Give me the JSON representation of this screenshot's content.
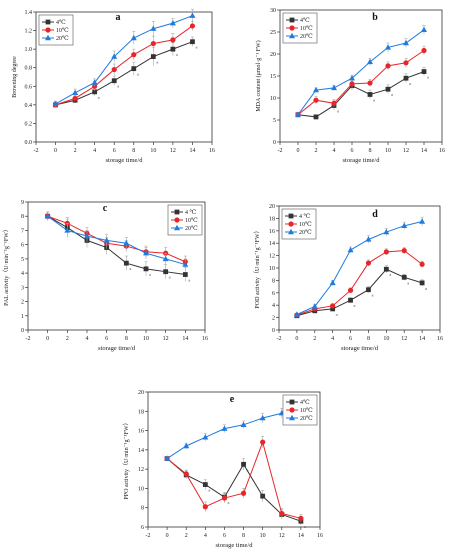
{
  "figure": {
    "background": "#ffffff"
  },
  "styles": {
    "series_colors": [
      "#333333",
      "#e8262a",
      "#1f7be0"
    ],
    "series_markers": [
      "square",
      "circle",
      "triangle"
    ],
    "error_bar_color": "#a8a8a8"
  },
  "chart_data": [
    {
      "panel": "a",
      "type": "line",
      "title": "a",
      "xlabel": "storage time/d",
      "ylabel": "Browning  degree",
      "xlim": [
        -2,
        16
      ],
      "ylim": [
        0.0,
        1.4
      ],
      "xticks": [
        -2,
        0,
        2,
        4,
        6,
        8,
        10,
        12,
        14,
        16
      ],
      "yticks": [
        0.0,
        0.2,
        0.4,
        0.6,
        0.8,
        1.0,
        1.2,
        1.4
      ],
      "legend_position": "top-left",
      "x": [
        0,
        2,
        4,
        6,
        8,
        10,
        12,
        14
      ],
      "series": [
        {
          "name": "4℃",
          "values": [
            0.4,
            0.45,
            0.54,
            0.66,
            0.79,
            0.92,
            1.0,
            1.08
          ],
          "errors": [
            0.03,
            0.03,
            0.04,
            0.05,
            0.07,
            0.1,
            0.07,
            0.05
          ],
          "annotations": [
            "",
            "",
            "a",
            "a",
            "a",
            "a",
            "a",
            "a"
          ]
        },
        {
          "name": "10℃",
          "values": [
            0.4,
            0.47,
            0.6,
            0.78,
            0.94,
            1.06,
            1.1,
            1.25
          ],
          "errors": [
            0.03,
            0.03,
            0.05,
            0.06,
            0.06,
            0.08,
            0.07,
            0.05
          ],
          "annotations": [
            "",
            "",
            "",
            "",
            "",
            "",
            "",
            ""
          ]
        },
        {
          "name": "20℃",
          "values": [
            0.41,
            0.53,
            0.64,
            0.92,
            1.12,
            1.22,
            1.28,
            1.36
          ],
          "errors": [
            0.03,
            0.04,
            0.04,
            0.06,
            0.07,
            0.08,
            0.05,
            0.07
          ],
          "annotations": [
            "",
            "",
            "",
            "",
            "",
            "",
            "",
            ""
          ]
        }
      ]
    },
    {
      "panel": "b",
      "type": "line",
      "title": "b",
      "xlabel": "storage time/d",
      "ylabel": "MDA content (μmol·g⁻¹ FW)",
      "xlim": [
        -2,
        16
      ],
      "ylim": [
        0,
        30
      ],
      "xticks": [
        -2,
        0,
        2,
        4,
        6,
        8,
        10,
        12,
        14,
        16
      ],
      "yticks": [
        0,
        5,
        10,
        15,
        20,
        25,
        30
      ],
      "legend_position": "top-left",
      "x": [
        0,
        2,
        4,
        6,
        8,
        10,
        12,
        14
      ],
      "series": [
        {
          "name": "4℃",
          "values": [
            6.2,
            5.7,
            8.3,
            12.8,
            10.8,
            12.0,
            14.5,
            16.0
          ],
          "errors": [
            0.3,
            0.5,
            1.0,
            1.0,
            1.0,
            1.0,
            1.0,
            1.0
          ],
          "annotations": [
            "",
            "",
            "a",
            "",
            "a",
            "a",
            "a",
            "a"
          ]
        },
        {
          "name": "10℃",
          "values": [
            6.2,
            9.5,
            8.8,
            13.2,
            13.4,
            17.3,
            18.0,
            20.8
          ],
          "errors": [
            0.3,
            0.8,
            0.8,
            0.8,
            0.8,
            0.9,
            1.0,
            1.0
          ],
          "annotations": [
            "",
            "",
            "",
            "",
            "",
            "",
            "",
            ""
          ]
        },
        {
          "name": "20℃",
          "values": [
            6.2,
            11.8,
            12.3,
            14.5,
            18.2,
            21.5,
            22.5,
            25.5
          ],
          "errors": [
            0.3,
            0.5,
            0.6,
            0.7,
            0.8,
            1.0,
            1.0,
            1.0
          ],
          "annotations": [
            "",
            "",
            "",
            "",
            "",
            "",
            "",
            ""
          ]
        }
      ]
    },
    {
      "panel": "c",
      "type": "line",
      "title": "c",
      "xlabel": "storage time/d",
      "ylabel": "PAL activity（U·min⁻¹g⁻¹FW）",
      "xlim": [
        -2,
        16
      ],
      "ylim": [
        0,
        9
      ],
      "xticks": [
        -2,
        0,
        2,
        4,
        6,
        8,
        10,
        12,
        14,
        16
      ],
      "yticks": [
        0,
        1,
        2,
        3,
        4,
        5,
        6,
        7,
        8,
        9
      ],
      "legend_position": "top-right",
      "x": [
        0,
        2,
        4,
        6,
        8,
        10,
        12,
        14
      ],
      "series": [
        {
          "name": "4 ℃",
          "values": [
            8.0,
            7.2,
            6.3,
            5.8,
            4.7,
            4.3,
            4.1,
            3.9
          ],
          "errors": [
            0.3,
            0.6,
            0.5,
            0.5,
            0.5,
            0.5,
            0.5,
            0.5
          ],
          "annotations": [
            "",
            "",
            "",
            "",
            "a",
            "a",
            "a",
            "a"
          ]
        },
        {
          "name": "10℃",
          "values": [
            8.0,
            7.5,
            6.8,
            6.1,
            5.9,
            5.5,
            5.4,
            4.8
          ],
          "errors": [
            0.3,
            0.4,
            0.4,
            0.4,
            0.4,
            0.4,
            0.4,
            0.4
          ],
          "annotations": [
            "",
            "",
            "",
            "",
            "",
            "",
            "",
            ""
          ]
        },
        {
          "name": "20℃",
          "values": [
            8.0,
            7.0,
            6.6,
            6.3,
            6.1,
            5.4,
            5.0,
            4.6
          ],
          "errors": [
            0.3,
            0.5,
            0.4,
            0.4,
            0.4,
            0.4,
            0.4,
            0.4
          ],
          "annotations": [
            "",
            "",
            "",
            "",
            "",
            "",
            "",
            ""
          ]
        }
      ]
    },
    {
      "panel": "d",
      "type": "line",
      "title": "d",
      "xlabel": "storage time/d",
      "ylabel": "POD activity（U·min⁻¹g⁻¹FW）",
      "xlim": [
        -2,
        16
      ],
      "ylim": [
        0,
        20
      ],
      "xticks": [
        -2,
        0,
        2,
        4,
        6,
        8,
        10,
        12,
        14,
        16
      ],
      "yticks": [
        0,
        2,
        4,
        6,
        8,
        10,
        12,
        14,
        16,
        18,
        20
      ],
      "legend_position": "top-left",
      "x": [
        0,
        2,
        4,
        6,
        8,
        10,
        12,
        14
      ],
      "series": [
        {
          "name": "4 ℃",
          "values": [
            2.3,
            3.1,
            3.4,
            4.8,
            6.5,
            9.8,
            8.5,
            7.6
          ],
          "errors": [
            0.2,
            0.2,
            0.3,
            0.4,
            0.5,
            0.6,
            0.5,
            0.5
          ],
          "annotations": [
            "",
            "",
            "a",
            "a",
            "a",
            "a",
            "a",
            "a"
          ]
        },
        {
          "name": "10℃",
          "values": [
            2.4,
            3.4,
            3.9,
            6.4,
            10.8,
            12.6,
            12.8,
            10.6
          ],
          "errors": [
            0.2,
            0.3,
            0.3,
            0.4,
            0.5,
            0.5,
            0.5,
            0.5
          ],
          "annotations": [
            "",
            "",
            "",
            "",
            "",
            "",
            "",
            ""
          ]
        },
        {
          "name": "20℃",
          "values": [
            2.5,
            3.8,
            7.6,
            12.9,
            14.6,
            15.8,
            16.8,
            17.5
          ],
          "errors": [
            0.2,
            0.3,
            0.4,
            0.5,
            0.6,
            0.6,
            0.6,
            0.7
          ],
          "annotations": [
            "",
            "",
            "",
            "",
            "",
            "",
            "",
            ""
          ]
        }
      ]
    },
    {
      "panel": "e",
      "type": "line",
      "title": "e",
      "xlabel": "storage time/d",
      "ylabel": "PPO activity（U·min⁻¹g⁻¹FW）",
      "xlim": [
        -2,
        16
      ],
      "ylim": [
        6,
        20
      ],
      "xticks": [
        -2,
        0,
        2,
        4,
        6,
        8,
        10,
        12,
        14,
        16
      ],
      "yticks": [
        6,
        8,
        10,
        12,
        14,
        16,
        18,
        20
      ],
      "legend_position": "top-right",
      "x": [
        0,
        2,
        4,
        6,
        8,
        10,
        12,
        14
      ],
      "series": [
        {
          "name": "4℃",
          "values": [
            13.1,
            11.4,
            10.4,
            9.1,
            12.5,
            9.2,
            7.3,
            6.6
          ],
          "errors": [
            0.2,
            0.4,
            0.5,
            0.5,
            0.6,
            0.6,
            0.5,
            0.4
          ],
          "annotations": [
            "",
            "",
            "a",
            "a",
            "a",
            "",
            "",
            "a"
          ]
        },
        {
          "name": "10℃",
          "values": [
            13.1,
            11.5,
            8.1,
            9.0,
            9.5,
            14.8,
            7.4,
            6.9
          ],
          "errors": [
            0.2,
            0.4,
            0.5,
            0.5,
            0.5,
            0.6,
            0.5,
            0.4
          ],
          "annotations": [
            "",
            "",
            "",
            "",
            "",
            "",
            "",
            ""
          ]
        },
        {
          "name": "20℃",
          "values": [
            13.1,
            14.4,
            15.3,
            16.2,
            16.6,
            17.3,
            17.8,
            18.4
          ],
          "errors": [
            0.2,
            0.3,
            0.4,
            0.4,
            0.4,
            0.5,
            0.5,
            0.4
          ],
          "annotations": [
            "",
            "",
            "",
            "",
            "",
            "",
            "",
            ""
          ]
        }
      ]
    }
  ]
}
